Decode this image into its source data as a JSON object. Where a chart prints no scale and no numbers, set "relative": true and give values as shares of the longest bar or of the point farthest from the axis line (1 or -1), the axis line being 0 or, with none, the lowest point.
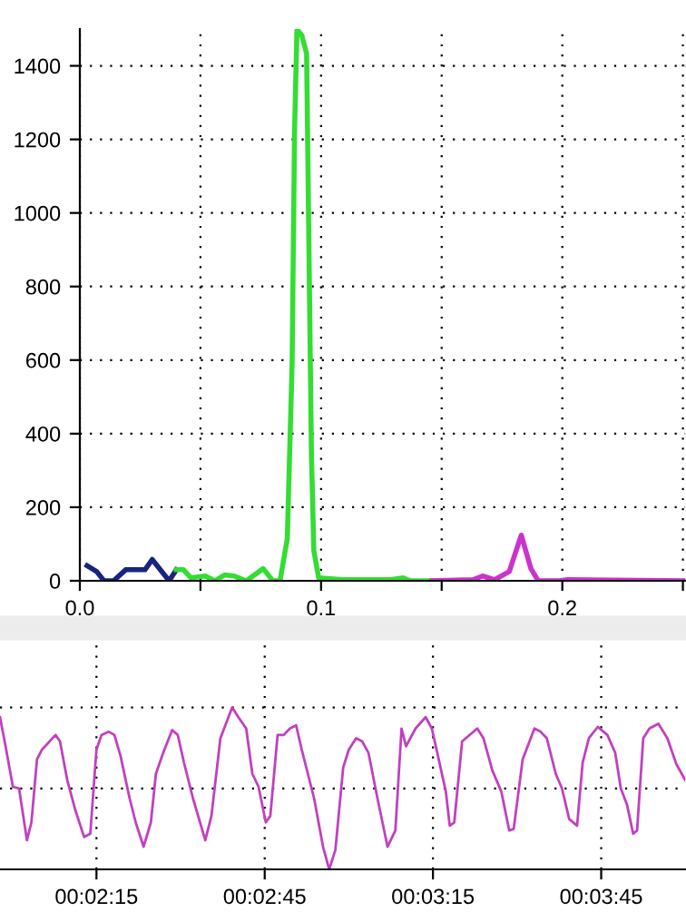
{
  "chart_data": [
    {
      "type": "line",
      "xlim": [
        0,
        0.251
      ],
      "ylim": [
        0,
        1500
      ],
      "xticks": [
        {
          "value": 0,
          "label": "0.0"
        },
        {
          "value": 0.05,
          "label": null
        },
        0.1,
        {
          "value": 0.15,
          "label": null
        },
        0.2,
        {
          "value": 0.25,
          "label": null
        }
      ],
      "yticks": [
        0,
        200,
        400,
        600,
        800,
        1000,
        1200,
        1400
      ],
      "grid": true,
      "marker": "none",
      "line_style": "solid",
      "series": [
        {
          "color": "#1a237e",
          "x": [
            0.003,
            0.007,
            0.01,
            0.014,
            0.019,
            0.027,
            0.03,
            0.037,
            0.04
          ],
          "values": [
            41,
            25,
            0,
            0,
            30,
            30,
            58,
            0,
            30
          ]
        },
        {
          "color": "#33dd33",
          "x": [
            0.04,
            0.043,
            0.046,
            0.052,
            0.056,
            0.06,
            0.064,
            0.069,
            0.076,
            0.08,
            0.083,
            0.086,
            0.088,
            0.089,
            0.09,
            0.092,
            0.094,
            0.095,
            0.096,
            0.097,
            0.099,
            0.109,
            0.129,
            0.134,
            0.137,
            0.146
          ],
          "values": [
            30,
            30,
            8,
            13,
            0,
            16,
            13,
            0,
            33,
            0,
            0,
            115,
            593,
            1219,
            1499,
            1483,
            1433,
            890,
            346,
            82,
            8,
            3,
            3,
            8,
            0,
            0
          ]
        },
        {
          "color": "#cc33cc",
          "x": [
            0.146,
            0.163,
            0.167,
            0.172,
            0.178,
            0.183,
            0.187,
            0.19,
            0.199,
            0.202,
            0.251
          ],
          "values": [
            0,
            3,
            13,
            3,
            25,
            124,
            33,
            0,
            0,
            3,
            0
          ]
        }
      ]
    },
    {
      "type": "line",
      "relative": true,
      "xlim": [
        117.8,
        240.0
      ],
      "xticks": [
        {
          "value": 135,
          "label": "00:02:15"
        },
        {
          "value": 165,
          "label": "00:02:45"
        },
        {
          "value": 195,
          "label": "00:03:15"
        },
        {
          "value": 225,
          "label": "00:03:45"
        }
      ],
      "grid": true,
      "marker": "none",
      "line_style": "solid",
      "tick_labels": "x",
      "series": [
        {
          "color": "#c040c0",
          "x": [
            117.8,
            118.8,
            120.1,
            121.2,
            122.6,
            123.4,
            124.4,
            125.3,
            127.7,
            128.5,
            129.8,
            131.2,
            132.8,
            133.9,
            135.0,
            135.9,
            137.2,
            138.2,
            139.3,
            140.9,
            142.0,
            143.4,
            144.7,
            145.6,
            146.9,
            148.5,
            149.5,
            150.6,
            152.2,
            154.4,
            155.5,
            157.1,
            159.2,
            160.3,
            161.7,
            162.8,
            163.9,
            165.2,
            166.0,
            167.3,
            168.4,
            169.5,
            170.6,
            171.6,
            173.8,
            175.4,
            176.5,
            177.6,
            179.0,
            180.0,
            181.3,
            182.4,
            183.5,
            185.1,
            186.9,
            188.3,
            189.4,
            190.2,
            191.9,
            193.7,
            194.8,
            195.9,
            197.3,
            198.0,
            198.8,
            200.2,
            202.9,
            204.0,
            205.6,
            207.2,
            208.6,
            209.4,
            211.0,
            213.1,
            214.2,
            215.3,
            216.9,
            218.0,
            219.3,
            220.7,
            221.7,
            222.8,
            224.4,
            226.1,
            227.5,
            228.5,
            229.6,
            230.7,
            231.4,
            232.5,
            233.6,
            235.2,
            236.8,
            238.4,
            240.0
          ],
          "values": [
            0.94,
            0.76,
            0.51,
            0.5,
            0.18,
            0.29,
            0.68,
            0.74,
            0.83,
            0.79,
            0.55,
            0.37,
            0.2,
            0.22,
            0.74,
            0.83,
            0.85,
            0.83,
            0.7,
            0.44,
            0.29,
            0.14,
            0.29,
            0.59,
            0.72,
            0.86,
            0.83,
            0.66,
            0.44,
            0.18,
            0.33,
            0.81,
            1.0,
            0.94,
            0.87,
            0.59,
            0.51,
            0.29,
            0.33,
            0.83,
            0.83,
            0.87,
            0.89,
            0.74,
            0.44,
            0.14,
            0.0,
            0.12,
            0.63,
            0.74,
            0.81,
            0.79,
            0.72,
            0.44,
            0.14,
            0.24,
            0.87,
            0.76,
            0.87,
            0.94,
            0.87,
            0.7,
            0.48,
            0.27,
            0.29,
            0.79,
            0.87,
            0.81,
            0.61,
            0.48,
            0.24,
            0.25,
            0.68,
            0.87,
            0.85,
            0.81,
            0.59,
            0.5,
            0.31,
            0.27,
            0.66,
            0.81,
            0.88,
            0.83,
            0.72,
            0.5,
            0.4,
            0.22,
            0.24,
            0.81,
            0.87,
            0.9,
            0.81,
            0.65,
            0.55
          ]
        }
      ]
    }
  ]
}
